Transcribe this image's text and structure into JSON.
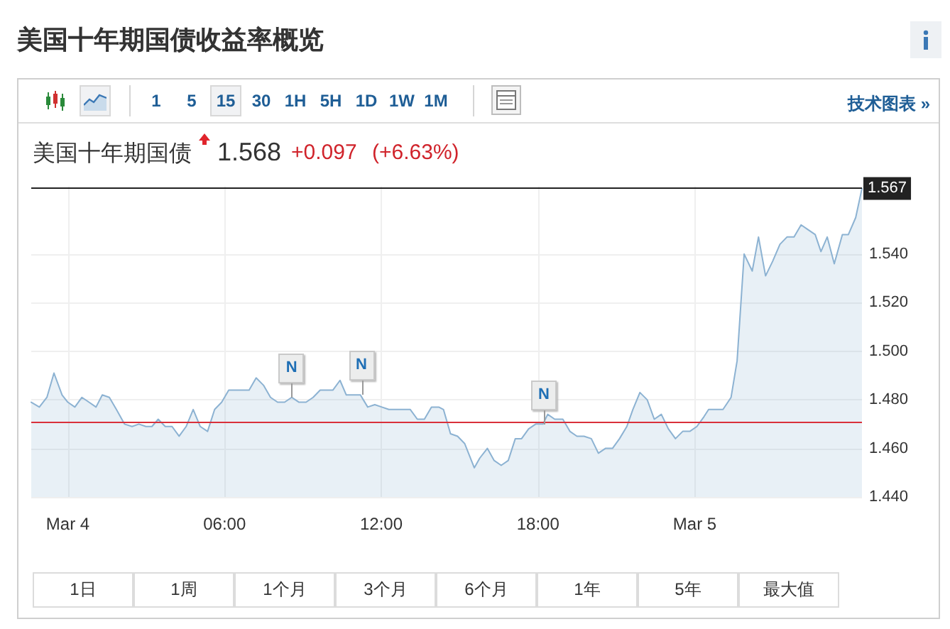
{
  "chart_data": {
    "type": "area",
    "title": "美国十年期国债收益率概览",
    "subtitle": "美国十年期国债",
    "x": [
      -1.4,
      -1.09,
      -0.8,
      -0.53,
      -0.22,
      0,
      0.27,
      0.54,
      0.81,
      1.08,
      1.32,
      1.59,
      1.86,
      2.17,
      2.46,
      2.72,
      2.99,
      3.22,
      3.46,
      3.73,
      3.99,
      4.26,
      4.53,
      4.8,
      5.07,
      5.35,
      5.62,
      5.89,
      6.16,
      6.43,
      6.94,
      7.21,
      7.49,
      7.76,
      8.03,
      8.3,
      8.57,
      8.85,
      9.12,
      9.39,
      9.66,
      9.93,
      10.15,
      10.42,
      10.66,
      10.93,
      11.2,
      11.48,
      11.75,
      12.02,
      12.29,
      12.56,
      12.84,
      13.11,
      13.38,
      13.65,
      13.92,
      14.2,
      14.38,
      14.65,
      14.92,
      15.19,
      15.56,
      15.77,
      16.06,
      16.32,
      16.59,
      16.86,
      17.13,
      17.37,
      17.64,
      17.91,
      18.19,
      18.37,
      18.64,
      18.95,
      19.22,
      19.49,
      19.76,
      20.04,
      20.31,
      20.58,
      20.85,
      21.12,
      21.4,
      21.63,
      21.9,
      22.18,
      22.45,
      22.72,
      22.99,
      23.26,
      23.54,
      23.81,
      24.08,
      24.35,
      24.53,
      25.08,
      25.39,
      25.62,
      25.89,
      26.2,
      26.44,
      26.71,
      26.98,
      27.26,
      27.53,
      27.8,
      28.07,
      28.34,
      28.61,
      28.83,
      29.07,
      29.34,
      29.65,
      29.88,
      30.16,
      30.4
    ],
    "values": [
      1.479,
      1.477,
      1.481,
      1.491,
      1.482,
      1.479,
      1.477,
      1.481,
      1.479,
      1.477,
      1.482,
      1.481,
      1.476,
      1.47,
      1.469,
      1.47,
      1.469,
      1.469,
      1.472,
      1.469,
      1.469,
      1.465,
      1.469,
      1.476,
      1.469,
      1.467,
      1.476,
      1.479,
      1.484,
      1.484,
      1.484,
      1.489,
      1.486,
      1.481,
      1.479,
      1.479,
      1.481,
      1.479,
      1.479,
      1.481,
      1.484,
      1.484,
      1.484,
      1.488,
      1.482,
      1.482,
      1.482,
      1.477,
      1.478,
      1.477,
      1.476,
      1.476,
      1.476,
      1.476,
      1.472,
      1.472,
      1.477,
      1.477,
      1.476,
      1.466,
      1.465,
      1.462,
      1.452,
      1.456,
      1.46,
      1.455,
      1.453,
      1.455,
      1.464,
      1.464,
      1.468,
      1.47,
      1.47,
      1.474,
      1.472,
      1.472,
      1.467,
      1.465,
      1.465,
      1.464,
      1.458,
      1.46,
      1.46,
      1.464,
      1.469,
      1.476,
      1.483,
      1.48,
      1.472,
      1.474,
      1.468,
      1.464,
      1.467,
      1.467,
      1.469,
      1.473,
      1.476,
      1.476,
      1.481,
      1.496,
      1.54,
      1.533,
      1.547,
      1.531,
      1.537,
      1.544,
      1.547,
      1.547,
      1.552,
      1.55,
      1.548,
      1.541,
      1.547,
      1.536,
      1.548,
      1.548,
      1.555,
      1.567
    ],
    "color": "#8cb2d2",
    "xlim": [
      -1.4,
      30.4
    ],
    "xticks": [
      {
        "value": 0,
        "label": "Mar 4"
      },
      {
        "value": 6,
        "label": "06:00"
      },
      {
        "value": 12,
        "label": "12:00"
      },
      {
        "value": 18,
        "label": "18:00"
      },
      {
        "value": 24,
        "label": "Mar 5"
      }
    ],
    "ylim": [
      1.44,
      1.568
    ],
    "yticks": [
      {
        "value": 1.44,
        "label": "1.440"
      },
      {
        "value": 1.46,
        "label": "1.460"
      },
      {
        "value": 1.48,
        "label": "1.480"
      },
      {
        "value": 1.5,
        "label": "1.500"
      },
      {
        "value": 1.52,
        "label": "1.520"
      },
      {
        "value": 1.54,
        "label": "1.540"
      }
    ],
    "grid": true,
    "ref_lines": [
      {
        "axis": "y",
        "value": 1.567,
        "label": "1.567",
        "color": "#222222"
      },
      {
        "axis": "y",
        "value": 1.471,
        "color": "#d9303a"
      }
    ],
    "annotations": [
      "1.568",
      "+0.097",
      "(+6.63%)",
      "15",
      "1",
      "5",
      "30",
      "1H",
      "5H",
      "1D",
      "1W",
      "1M",
      "技术图表 »",
      "1日",
      "1周",
      "1个月",
      "3个月",
      "6个月",
      "1年",
      "5年",
      "最大值",
      {
        "text": "N",
        "x": 8.57,
        "y": 1.481
      },
      {
        "text": "N",
        "x": 11.24,
        "y": 1.482
      },
      {
        "text": "N",
        "x": 18.22,
        "y": 1.47
      }
    ]
  }
}
